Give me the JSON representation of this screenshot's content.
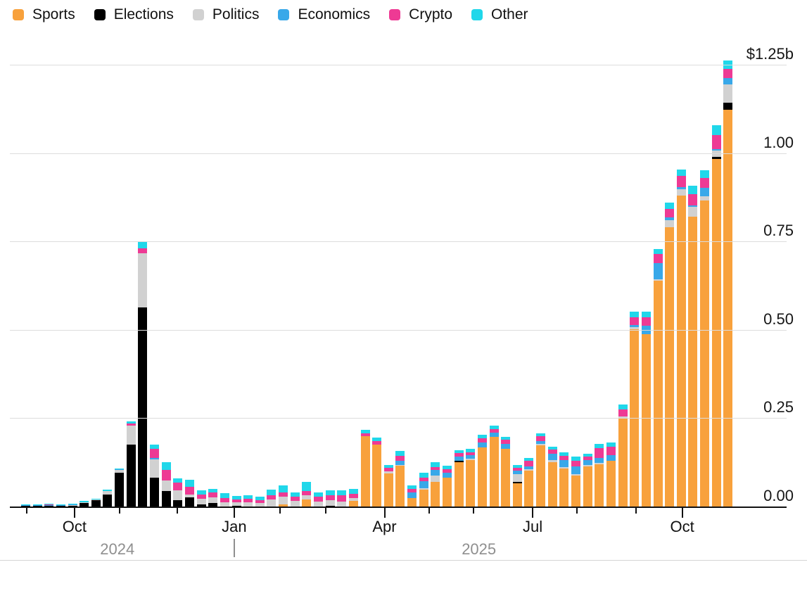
{
  "legend": {
    "items": [
      {
        "label": "Sports",
        "color": "#F8A13C"
      },
      {
        "label": "Elections",
        "color": "#000000"
      },
      {
        "label": "Politics",
        "color": "#D1D1D1"
      },
      {
        "label": "Economics",
        "color": "#38A8E9"
      },
      {
        "label": "Crypto",
        "color": "#EE3A94"
      },
      {
        "label": "Other",
        "color": "#20D7EA"
      }
    ]
  },
  "y_axis": {
    "labels": [
      "$1.25b",
      "1.00",
      "0.75",
      "0.50",
      "0.25",
      "0.00"
    ],
    "values": [
      1.25,
      1.0,
      0.75,
      0.5,
      0.25,
      0
    ]
  },
  "x_axis": {
    "ticks": [
      {
        "pos_pct": 2.3,
        "label": ""
      },
      {
        "pos_pct": 8.9,
        "label": "Oct"
      },
      {
        "pos_pct": 15.1,
        "label": ""
      },
      {
        "pos_pct": 23.1,
        "label": ""
      },
      {
        "pos_pct": 30.9,
        "label": "Jan"
      },
      {
        "pos_pct": 37.2,
        "label": ""
      },
      {
        "pos_pct": 43.5,
        "label": ""
      },
      {
        "pos_pct": 51.6,
        "label": "Apr"
      },
      {
        "pos_pct": 57.8,
        "label": ""
      },
      {
        "pos_pct": 63.9,
        "label": ""
      },
      {
        "pos_pct": 72.0,
        "label": "Jul"
      },
      {
        "pos_pct": 78.1,
        "label": ""
      },
      {
        "pos_pct": 86.2,
        "label": ""
      },
      {
        "pos_pct": 92.6,
        "label": "Oct"
      }
    ],
    "year_labels": [
      {
        "text": "2024",
        "pos_pct": 14.8
      },
      {
        "text": "2025",
        "pos_pct": 64.6
      }
    ],
    "year_divider_pos_pct": 30.9
  },
  "chart_data": {
    "type": "bar",
    "stacked": true,
    "title": "",
    "xlabel": "",
    "ylabel": "$1.25b",
    "ylim": [
      0,
      1.25
    ],
    "y_unit": "billions USD",
    "x_description": "weekly bars, late Aug 2024 through early Nov 2025",
    "x_tick_labels": [
      "Oct",
      "Jan",
      "Apr",
      "Jul",
      "Oct"
    ],
    "year_labels": [
      "2024",
      "2025"
    ],
    "legend_position": "top-left",
    "grid": true,
    "series": [
      {
        "name": "Sports",
        "color": "#F8A13C",
        "values": [
          0,
          0,
          0,
          0,
          0,
          0,
          0,
          0,
          0,
          0,
          0,
          0,
          0,
          0,
          0,
          0,
          0,
          0,
          0,
          0,
          0,
          0,
          0.006,
          0,
          0.02,
          0,
          0,
          0,
          0.015,
          0.199,
          0.176,
          0.094,
          0.115,
          0.024,
          0.048,
          0.07,
          0.082,
          0.126,
          0.132,
          0.167,
          0.198,
          0.163,
          0.066,
          0.101,
          0.173,
          0.126,
          0.107,
          0.087,
          0.114,
          0.12,
          0.13,
          0.25,
          0.502,
          0.488,
          0.639,
          0.79,
          0.879,
          0.821,
          0.865,
          0.984,
          1.123
        ]
      },
      {
        "name": "Elections",
        "color": "#000000",
        "values": [
          0.001,
          0.001,
          0.001,
          0.002,
          0.002,
          0.01,
          0.018,
          0.034,
          0.095,
          0.175,
          0.563,
          0.082,
          0.044,
          0.018,
          0.026,
          0.006,
          0.01,
          0,
          0.002,
          0,
          0,
          0,
          0,
          0,
          0,
          0,
          0.002,
          0,
          0,
          0,
          0,
          0,
          0,
          0,
          0,
          0,
          0,
          0.003,
          0,
          0,
          0,
          0,
          0.003,
          0,
          0,
          0,
          0,
          0,
          0,
          0,
          0,
          0,
          0,
          0,
          0,
          0,
          0,
          0,
          0,
          0.005,
          0.02
        ]
      },
      {
        "name": "Politics",
        "color": "#D1D1D1",
        "values": [
          0,
          0,
          0,
          0,
          0.001,
          0.001,
          0.002,
          0.009,
          0.008,
          0.053,
          0.154,
          0.052,
          0.029,
          0.028,
          0.008,
          0.015,
          0.015,
          0.012,
          0.01,
          0.012,
          0.01,
          0.02,
          0.022,
          0.015,
          0.012,
          0.014,
          0.016,
          0.013,
          0.008,
          0,
          0,
          0.006,
          0.002,
          0,
          0.004,
          0.017,
          0,
          0,
          0.004,
          0,
          0,
          0,
          0.022,
          0.005,
          0.004,
          0.006,
          0.004,
          0.005,
          0.004,
          0.004,
          0,
          0.005,
          0.006,
          0,
          0.003,
          0.02,
          0.018,
          0.026,
          0.012,
          0.018,
          0.051
        ]
      },
      {
        "name": "Economics",
        "color": "#38A8E9",
        "values": [
          0.002,
          0.002,
          0.002,
          0.002,
          0.002,
          0,
          0,
          0,
          0.002,
          0,
          0,
          0.004,
          0,
          0,
          0,
          0,
          0,
          0,
          0,
          0,
          0,
          0,
          0,
          0,
          0,
          0,
          0,
          0,
          0,
          0,
          0,
          0,
          0.013,
          0.016,
          0.02,
          0.017,
          0.013,
          0.013,
          0.01,
          0.015,
          0.012,
          0.015,
          0.011,
          0.008,
          0.008,
          0.018,
          0.021,
          0.022,
          0.014,
          0.013,
          0.015,
          0,
          0.006,
          0.024,
          0.046,
          0.008,
          0.006,
          0.005,
          0.025,
          0.004,
          0.018
        ]
      },
      {
        "name": "Crypto",
        "color": "#EE3A94",
        "values": [
          0,
          0,
          0.001,
          0,
          0,
          0,
          0,
          0,
          0,
          0.006,
          0.013,
          0.025,
          0.03,
          0.021,
          0.022,
          0.013,
          0.015,
          0.012,
          0.008,
          0.01,
          0.008,
          0.012,
          0.011,
          0.012,
          0.012,
          0.013,
          0.014,
          0.018,
          0.013,
          0.008,
          0.009,
          0.009,
          0.013,
          0.01,
          0.009,
          0.008,
          0.01,
          0.009,
          0.008,
          0.012,
          0.01,
          0.011,
          0.008,
          0.015,
          0.014,
          0.011,
          0.012,
          0.015,
          0.009,
          0.028,
          0.024,
          0.019,
          0.021,
          0.024,
          0.026,
          0.025,
          0.033,
          0.032,
          0.027,
          0.041,
          0.026
        ]
      },
      {
        "name": "Other",
        "color": "#20D7EA",
        "values": [
          0.003,
          0.003,
          0.003,
          0.003,
          0.003,
          0.003,
          0.002,
          0.004,
          0.002,
          0.006,
          0.021,
          0.012,
          0.022,
          0.013,
          0.019,
          0.012,
          0.01,
          0.013,
          0.01,
          0.01,
          0.01,
          0.015,
          0.02,
          0.013,
          0.025,
          0.013,
          0.013,
          0.014,
          0.014,
          0.01,
          0.01,
          0.008,
          0.014,
          0.01,
          0.014,
          0.013,
          0.01,
          0.009,
          0.009,
          0.01,
          0.009,
          0.009,
          0.007,
          0.009,
          0.009,
          0.008,
          0.009,
          0.012,
          0.008,
          0.013,
          0.013,
          0.015,
          0.017,
          0.016,
          0.014,
          0.017,
          0.017,
          0.023,
          0.023,
          0.027,
          0.024
        ]
      }
    ],
    "weekly_totals": [
      0.006,
      0.006,
      0.007,
      0.007,
      0.008,
      0.014,
      0.022,
      0.047,
      0.107,
      0.24,
      0.751,
      0.175,
      0.125,
      0.08,
      0.075,
      0.046,
      0.05,
      0.037,
      0.03,
      0.032,
      0.028,
      0.047,
      0.059,
      0.04,
      0.069,
      0.04,
      0.045,
      0.045,
      0.05,
      0.217,
      0.195,
      0.117,
      0.157,
      0.06,
      0.095,
      0.125,
      0.115,
      0.16,
      0.163,
      0.204,
      0.229,
      0.198,
      0.117,
      0.138,
      0.208,
      0.169,
      0.153,
      0.141,
      0.149,
      0.178,
      0.182,
      0.289,
      0.552,
      0.552,
      0.728,
      0.86,
      0.953,
      0.907,
      0.952,
      1.079,
      1.262
    ]
  }
}
